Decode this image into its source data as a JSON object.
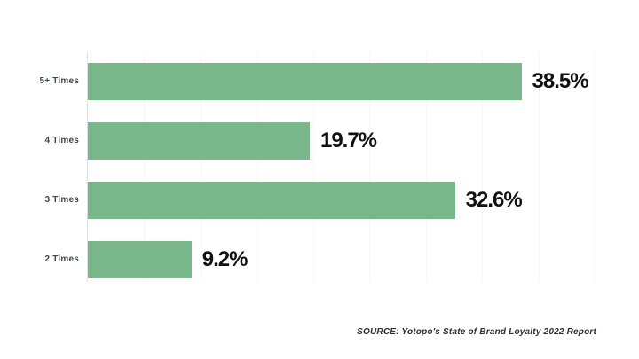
{
  "page": {
    "background": "#ffffff"
  },
  "chart_data": {
    "type": "bar",
    "orientation": "horizontal",
    "title": "",
    "categories": [
      "5+ Times",
      "4 Times",
      "3 Times",
      "2 Times"
    ],
    "values": [
      38.5,
      19.7,
      32.6,
      9.2
    ],
    "value_labels": [
      "38.5%",
      "19.7%",
      "32.6%",
      "9.2%"
    ],
    "xlabel": "",
    "ylabel": "",
    "xlim": [
      0,
      45
    ],
    "gridline_step_pct": 5,
    "grid": true,
    "legend": false,
    "bar_color": "#7ab88b",
    "axis_line_color": "#e2e2e2",
    "gridline_color": "#f6f6f6",
    "category_label_color": "#42474c",
    "value_label_color": "#111111"
  },
  "source_note": {
    "text": "SOURCE: Yotopo's State of Brand Loyalty 2022 Report"
  }
}
